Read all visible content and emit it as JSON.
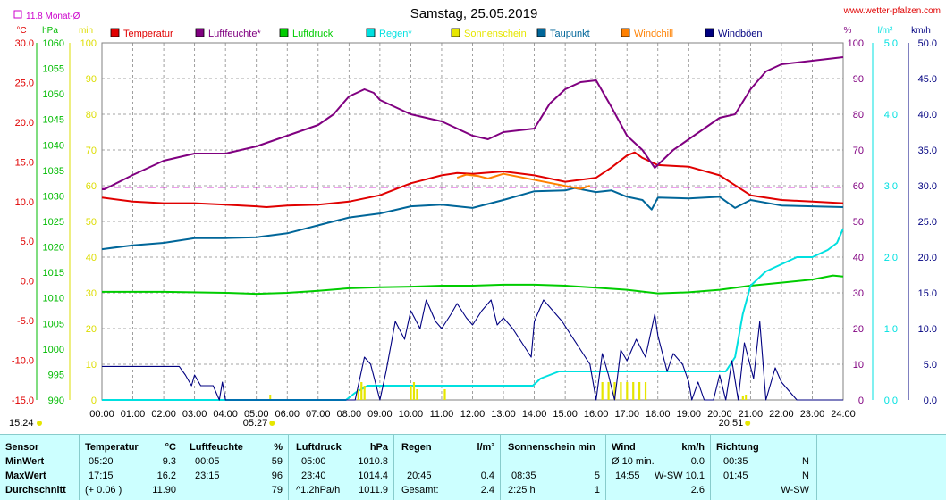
{
  "header": {
    "title": "Samstag, 25.05.2019",
    "website": "www.wetter-pfalzen.com",
    "month_avg": "11.8 Monat-Ø",
    "left_units": [
      "°C",
      "hPa",
      "min"
    ],
    "right_units": [
      "%",
      "l/m²",
      "km/h"
    ],
    "sunrise": "05:27",
    "sunset": "20:51",
    "current_time": "15:24"
  },
  "colors": {
    "temperature": "#e00000",
    "humidity": "#800080",
    "pressure": "#00cc00",
    "rain": "#00e0e0",
    "sunshine": "#e6e600",
    "dewpoint": "#006699",
    "windchill": "#ff8000",
    "gust": "#000080",
    "avg_line": "#cc00cc",
    "axis_temp": "#e00000",
    "axis_pressure": "#00bb00",
    "axis_min": "#dddd00",
    "axis_hum": "#800080",
    "axis_rain": "#00e0e0",
    "axis_wind": "#000080"
  },
  "chart_data": {
    "type": "line",
    "title": "Samstag, 25.05.2019",
    "x_labels": [
      "00:00",
      "01:00",
      "02:00",
      "03:00",
      "04:00",
      "05:00",
      "06:00",
      "07:00",
      "08:00",
      "09:00",
      "10:00",
      "11:00",
      "12:00",
      "13:00",
      "14:00",
      "15:00",
      "16:00",
      "17:00",
      "18:00",
      "19:00",
      "20:00",
      "21:00",
      "22:00",
      "23:00",
      "24:00"
    ],
    "axes": {
      "temperature": {
        "unit": "°C",
        "ticks": [
          "30.0",
          "25.0",
          "20.0",
          "15.0",
          "10.0",
          "5.0",
          "0.0",
          "-5.0",
          "-10.0",
          "-15.0"
        ],
        "range": [
          -15,
          30
        ]
      },
      "pressure": {
        "unit": "hPa",
        "ticks": [
          "1060",
          "1055",
          "1050",
          "1045",
          "1040",
          "1035",
          "1030",
          "1025",
          "1020",
          "1015",
          "1010",
          "1005",
          "1000",
          "995",
          "990"
        ],
        "range": [
          990,
          1060
        ]
      },
      "sunshine": {
        "unit": "min",
        "ticks": [
          "100",
          "90",
          "80",
          "70",
          "60",
          "50",
          "40",
          "30",
          "20",
          "10",
          "0"
        ],
        "range": [
          0,
          100
        ]
      },
      "humidity": {
        "unit": "%",
        "ticks": [
          "100",
          "90",
          "80",
          "70",
          "60",
          "50",
          "40",
          "30",
          "20",
          "10",
          "0"
        ],
        "range": [
          0,
          100
        ]
      },
      "rain": {
        "unit": "l/m²",
        "ticks": [
          "5.0",
          "4.0",
          "3.0",
          "2.0",
          "1.0",
          "0.0"
        ],
        "range": [
          0,
          5
        ]
      },
      "wind": {
        "unit": "km/h",
        "ticks": [
          "50.0",
          "45.0",
          "40.0",
          "35.0",
          "30.0",
          "25.0",
          "20.0",
          "15.0",
          "10.0",
          "5.0",
          "0.0"
        ],
        "range": [
          0,
          50
        ]
      }
    },
    "month_avg_temperature": 11.8,
    "series": [
      {
        "name": "Temperatur",
        "axis": "temperature",
        "color": "#e00000",
        "x": [
          0,
          1,
          2,
          3,
          4,
          5,
          5.33,
          6,
          7,
          8,
          9,
          10,
          11,
          11.5,
          12,
          13,
          14,
          15,
          16,
          16.5,
          17,
          17.25,
          17.5,
          18,
          19,
          20,
          21,
          22,
          23,
          24
        ],
        "y": [
          10.5,
          10,
          9.8,
          9.8,
          9.6,
          9.4,
          9.3,
          9.5,
          9.6,
          10,
          10.8,
          12.3,
          13.3,
          13.6,
          13.5,
          13.8,
          13.3,
          12.5,
          13,
          14.3,
          15.8,
          16.2,
          15.5,
          14.6,
          14.4,
          13.3,
          10.8,
          10.2,
          10.0,
          9.8
        ]
      },
      {
        "name": "Luftfeuchte*",
        "axis": "humidity",
        "color": "#800080",
        "x": [
          0,
          0.08,
          1,
          2,
          3,
          4,
          5,
          6,
          7,
          7.5,
          8,
          8.5,
          8.8,
          9,
          9.5,
          10,
          11,
          12,
          12.5,
          13,
          14,
          14.5,
          15,
          15.5,
          16,
          16.5,
          17,
          17.5,
          17.9,
          18.5,
          19,
          20,
          20.5,
          21,
          21.5,
          22,
          23,
          24
        ],
        "y": [
          59,
          59,
          63,
          67,
          69,
          69,
          71,
          74,
          77,
          80,
          85,
          87,
          86,
          84,
          82,
          80,
          78,
          74,
          73,
          75,
          76,
          83,
          87,
          89,
          89.5,
          82,
          74,
          70,
          65,
          70,
          73,
          79,
          80,
          87,
          92,
          94,
          95,
          96
        ]
      },
      {
        "name": "Luftdruck",
        "axis": "pressure",
        "color": "#00cc00",
        "x": [
          0,
          2,
          4,
          5,
          6,
          7,
          8,
          9,
          10,
          11,
          12,
          13,
          14,
          15,
          16,
          17,
          18,
          19,
          20,
          21,
          22,
          23,
          23.67,
          24
        ],
        "y": [
          1011.2,
          1011.2,
          1011.0,
          1010.8,
          1011.0,
          1011.4,
          1011.9,
          1012.1,
          1012.2,
          1012.4,
          1012.4,
          1012.6,
          1012.6,
          1012.4,
          1012.0,
          1011.6,
          1010.9,
          1011.1,
          1011.6,
          1012.4,
          1013.0,
          1013.6,
          1014.4,
          1014.2
        ]
      },
      {
        "name": "Regen*",
        "axis": "rain",
        "color": "#00e0e0",
        "x": [
          0,
          7.9,
          8.2,
          8.6,
          13.95,
          14.2,
          14.8,
          15.5,
          20.2,
          20.5,
          20.75,
          21,
          21.5,
          22,
          22.5,
          23,
          23.5,
          23.8,
          24
        ],
        "y": [
          0,
          0,
          0.1,
          0.2,
          0.2,
          0.3,
          0.4,
          0.4,
          0.4,
          0.6,
          1.2,
          1.6,
          1.8,
          1.9,
          2.0,
          2.0,
          2.1,
          2.2,
          2.4
        ]
      },
      {
        "name": "Sonnenschein",
        "axis": "sunshine",
        "color": "#e6e600",
        "x": [
          8.3,
          8.4,
          8.5,
          10,
          10.1,
          10.2,
          11.1,
          16.2,
          16.4,
          16.6,
          16.8,
          17.0,
          17.2,
          17.4,
          17.6,
          20.75
        ],
        "y": [
          3,
          5,
          4,
          4,
          5,
          3,
          3,
          5,
          5,
          5,
          5,
          5,
          5,
          5,
          5,
          1
        ]
      },
      {
        "name": "Taupunkt",
        "axis": "temperature",
        "color": "#006699",
        "x": [
          0,
          1,
          2,
          3,
          4,
          5,
          6,
          7,
          8,
          9,
          10,
          11,
          12,
          13,
          14,
          15,
          15.3,
          16,
          16.5,
          17,
          17.5,
          17.8,
          18,
          19,
          20,
          20.5,
          21,
          22,
          23,
          24
        ],
        "y": [
          4,
          4.5,
          4.8,
          5.4,
          5.4,
          5.5,
          6,
          7,
          8,
          8.5,
          9.4,
          9.6,
          9.2,
          10.2,
          11.3,
          11.4,
          11.7,
          11.2,
          11.4,
          10.6,
          10.2,
          9,
          10.5,
          10.4,
          10.6,
          9.2,
          10.2,
          9.5,
          9.4,
          9.3
        ]
      },
      {
        "name": "Windchill",
        "axis": "temperature",
        "color": "#ff8000",
        "x": [
          11.5,
          11.8,
          12.2,
          12.5,
          13,
          15.5,
          15.8
        ],
        "y": [
          13.0,
          13.4,
          13.2,
          12.9,
          13.5,
          11.6,
          12.0
        ]
      },
      {
        "name": "Windböen",
        "axis": "wind",
        "color": "#000080",
        "x": [
          0,
          1,
          2,
          2.5,
          2.7,
          2.9,
          3.0,
          3.2,
          3.6,
          3.8,
          3.9,
          4.0,
          4.2,
          8,
          8.2,
          8.5,
          8.7,
          9.0,
          9.2,
          9.5,
          9.8,
          10,
          10.3,
          10.5,
          10.8,
          11,
          11.3,
          11.5,
          11.8,
          12,
          12.3,
          12.6,
          12.8,
          13,
          13.3,
          13.6,
          13.9,
          14,
          14.3,
          14.6,
          14.9,
          15.2,
          15.5,
          15.8,
          16,
          16.2,
          16.4,
          16.6,
          16.8,
          17,
          17.3,
          17.6,
          17.9,
          18,
          18.3,
          18.5,
          18.8,
          19,
          19.1,
          19.3,
          19.5,
          19.8,
          20,
          20.2,
          20.4,
          20.6,
          20.8,
          21.1,
          21.3,
          21.5,
          21.8,
          22,
          22.5,
          23,
          24
        ],
        "y": [
          4.7,
          4.7,
          4.7,
          4.7,
          3.5,
          2.0,
          3.5,
          2.0,
          2.0,
          0,
          2.5,
          0,
          0,
          0,
          0,
          6.0,
          5.0,
          0,
          4.0,
          11.0,
          8.5,
          12.5,
          10.0,
          14.0,
          11.0,
          10.0,
          12.0,
          13.5,
          11.5,
          10.5,
          12.5,
          14.0,
          10.5,
          11.5,
          10.0,
          8.0,
          6.0,
          11.0,
          14.0,
          12.5,
          11.0,
          9.0,
          7.0,
          5.0,
          0,
          6.5,
          3.5,
          0,
          7.0,
          5.5,
          8.5,
          6.0,
          12.0,
          9.0,
          4.0,
          6.5,
          5.0,
          2.5,
          0,
          2.5,
          0,
          0,
          3.5,
          0,
          5.5,
          0,
          8.0,
          3.0,
          11.0,
          0,
          4.5,
          2.5,
          0,
          0,
          0
        ]
      }
    ]
  },
  "stats": {
    "headers": {
      "sensor": "Sensor",
      "temp": "Temperatur",
      "temp_unit": "°C",
      "hum": "Luftfeuchte",
      "hum_unit": "%",
      "pres": "Luftdruck",
      "pres_unit": "hPa",
      "rain": "Regen",
      "rain_unit": "l/m²",
      "sun": "Sonnenschein min",
      "wind": "Wind",
      "wind_unit": "km/h",
      "dir": "Richtung"
    },
    "rows": [
      {
        "label": "MinWert",
        "temp_t": "05:20",
        "temp_v": "9.3",
        "hum_t": "00:05",
        "hum_v": "59",
        "pres_t": "05:00",
        "pres_v": "1010.8",
        "rain_t": "",
        "rain_v": "",
        "sun_t": "",
        "sun_v": "",
        "wind_t": "Ø 10 min.",
        "wind_v": "0.0",
        "dir_t": "00:35",
        "dir_v": "N"
      },
      {
        "label": "MaxWert",
        "temp_t": "17:15",
        "temp_v": "16.2",
        "hum_t": "23:15",
        "hum_v": "96",
        "pres_t": "23:40",
        "pres_v": "1014.4",
        "rain_t": "20:45",
        "rain_v": "0.4",
        "sun_t": "08:35",
        "sun_v": "5",
        "wind_t": "14:55",
        "wind_v": "W-SW 10.1",
        "dir_t": "01:45",
        "dir_v": "N"
      },
      {
        "label": "Durchschnitt",
        "temp_t": "(+ 0.06 )",
        "temp_v": "11.90",
        "hum_t": "",
        "hum_v": "79",
        "pres_t": "^1.2hPa/h",
        "pres_v": "1011.9",
        "rain_t": "Gesamt:",
        "rain_v": "2.4",
        "sun_t": "2:25 h",
        "sun_v": "1",
        "wind_t": "",
        "wind_v": "2.6",
        "dir_t": "",
        "dir_v": "W-SW"
      }
    ]
  }
}
